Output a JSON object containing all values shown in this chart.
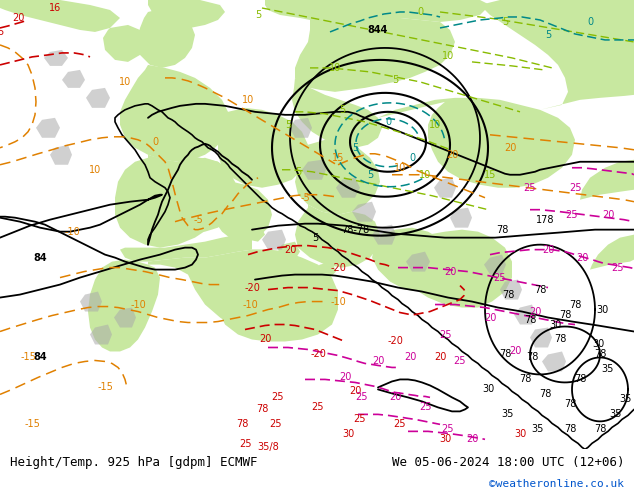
{
  "title_left": "Height/Temp. 925 hPa [gdpm] ECMWF",
  "title_right": "We 05-06-2024 18:00 UTC (12+06)",
  "credit": "©weatheronline.co.uk",
  "fig_width": 6.34,
  "fig_height": 4.9,
  "dpi": 100,
  "title_fontsize": 9,
  "credit_fontsize": 8,
  "map_bg": "#e8eee8",
  "land_green": "#c8e8a0",
  "ocean_gray": "#d8d8d8",
  "orange": "#e08000",
  "teal": "#008888",
  "ygreen": "#88bb00",
  "red": "#cc0000",
  "magenta": "#cc0099",
  "black": "#000000"
}
